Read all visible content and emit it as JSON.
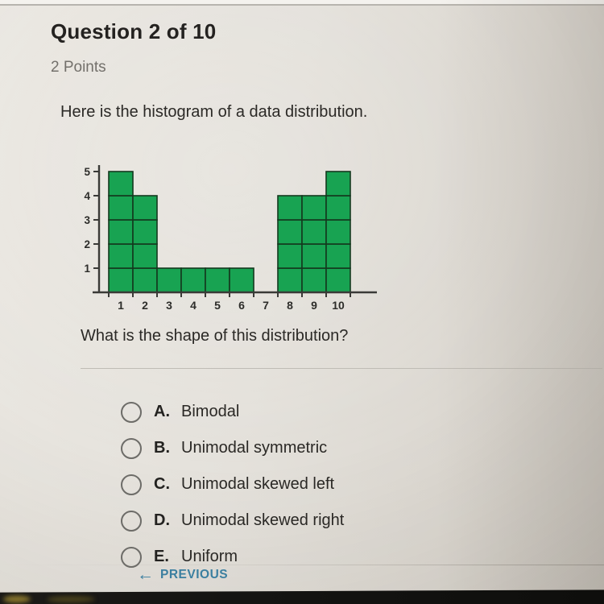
{
  "header": {
    "title": "Question 2 of 10",
    "points": "2 Points"
  },
  "question": {
    "intro": "Here is the histogram of a data distribution.",
    "prompt": "What is the shape of this distribution?"
  },
  "chart_data": {
    "type": "bar",
    "subtype": "histogram",
    "categories": [
      "1",
      "2",
      "3",
      "4",
      "5",
      "6",
      "7",
      "8",
      "9",
      "10"
    ],
    "values": [
      5,
      4,
      1,
      1,
      1,
      1,
      0,
      4,
      4,
      5
    ],
    "title": "",
    "xlabel": "",
    "ylabel": "",
    "ylim": [
      0,
      5
    ],
    "yticks": [
      1,
      2,
      3,
      4,
      5
    ],
    "grid": false,
    "legend": "none",
    "bar_color": "#18a352",
    "bar_border_color": "#14391f",
    "axis_color": "#3a3a37",
    "text_color": "#2d2d2a"
  },
  "options": [
    {
      "letter": "A.",
      "label": "Bimodal"
    },
    {
      "letter": "B.",
      "label": "Unimodal symmetric"
    },
    {
      "letter": "C.",
      "label": "Unimodal skewed left"
    },
    {
      "letter": "D.",
      "label": "Unimodal skewed right"
    },
    {
      "letter": "E.",
      "label": "Uniform"
    }
  ],
  "footer": {
    "previous_icon": "←",
    "previous_label": "PREVIOUS"
  },
  "colors": {
    "accent_green": "#18a352",
    "link_blue": "#3b7fa0",
    "background": "#e4e1db"
  }
}
